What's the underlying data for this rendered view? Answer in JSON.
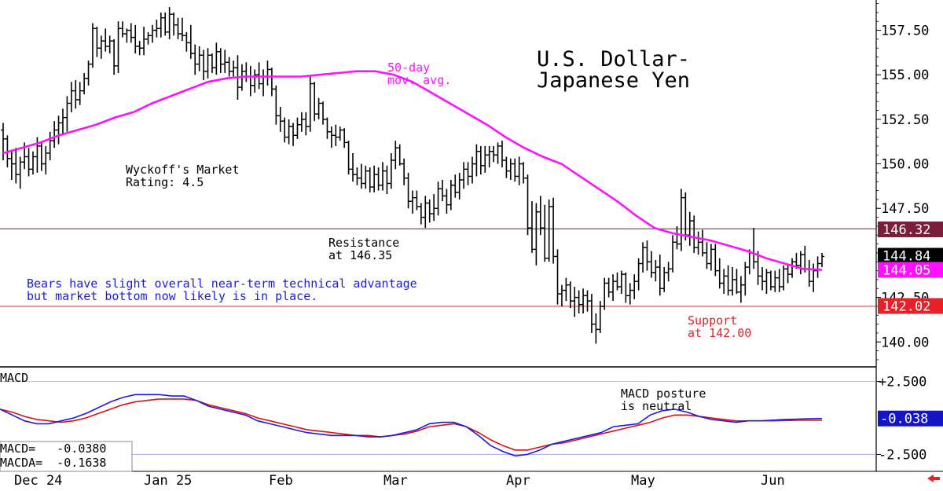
{
  "chart_data": {
    "type": "ohlc",
    "title": [
      "U.S. Dollar-",
      "Japanese Yen"
    ],
    "price_axis": {
      "ylim": [
        138.6,
        159.2
      ],
      "ticks": [
        "157.50",
        "155.00",
        "152.50",
        "150.00",
        "147.50",
        "142.50",
        "140.00"
      ],
      "tick_values": [
        157.5,
        155.0,
        152.5,
        150.0,
        147.5,
        142.5,
        140.0
      ]
    },
    "x_labels": [
      "Dec 24",
      "Jan 25",
      "Feb",
      "Mar",
      "Apr",
      "May",
      "Jun"
    ],
    "bars": [
      [
        151.9,
        152.3,
        150.2,
        151.4
      ],
      [
        151.4,
        151.6,
        149.8,
        150.3
      ],
      [
        150.3,
        150.8,
        149.1,
        150.0
      ],
      [
        150.0,
        150.9,
        148.9,
        149.4
      ],
      [
        149.4,
        150.4,
        148.6,
        150.1
      ],
      [
        150.1,
        151.2,
        149.7,
        150.4
      ],
      [
        150.4,
        150.9,
        149.3,
        149.7
      ],
      [
        149.7,
        150.7,
        149.4,
        150.4
      ],
      [
        150.4,
        151.5,
        149.5,
        151.0
      ],
      [
        151.0,
        151.2,
        149.6,
        150.0
      ],
      [
        150.0,
        151.0,
        149.4,
        150.6
      ],
      [
        150.6,
        151.8,
        150.2,
        151.3
      ],
      [
        151.3,
        152.4,
        150.9,
        151.9
      ],
      [
        151.9,
        152.7,
        151.1,
        152.3
      ],
      [
        152.3,
        153.1,
        151.6,
        152.6
      ],
      [
        152.6,
        153.8,
        151.8,
        153.4
      ],
      [
        153.4,
        154.6,
        152.9,
        154.1
      ],
      [
        154.1,
        154.7,
        153.1,
        153.6
      ],
      [
        153.6,
        154.6,
        153.3,
        154.1
      ],
      [
        154.1,
        155.1,
        153.9,
        154.8
      ],
      [
        154.8,
        155.8,
        154.4,
        155.6
      ],
      [
        155.6,
        157.9,
        155.4,
        157.6
      ],
      [
        157.6,
        157.7,
        156.0,
        156.5
      ],
      [
        156.5,
        157.2,
        155.9,
        156.9
      ],
      [
        156.9,
        157.6,
        156.3,
        156.6
      ],
      [
        156.6,
        157.2,
        156.2,
        156.9
      ],
      [
        156.9,
        157.0,
        155.0,
        155.5
      ],
      [
        155.5,
        158.0,
        155.1,
        157.6
      ],
      [
        157.6,
        158.0,
        157.1,
        157.3
      ],
      [
        157.3,
        157.6,
        156.8,
        157.5
      ],
      [
        157.5,
        157.9,
        156.8,
        157.1
      ],
      [
        157.1,
        157.8,
        156.2,
        156.6
      ],
      [
        156.6,
        156.9,
        156.1,
        156.5
      ],
      [
        156.5,
        157.7,
        156.1,
        157.0
      ],
      [
        157.0,
        157.4,
        156.7,
        157.2
      ],
      [
        157.2,
        157.8,
        156.8,
        157.5
      ],
      [
        157.5,
        158.1,
        157.1,
        157.6
      ],
      [
        157.6,
        158.5,
        157.1,
        158.2
      ],
      [
        158.2,
        158.5,
        157.2,
        157.4
      ],
      [
        157.4,
        158.8,
        157.0,
        158.4
      ],
      [
        158.4,
        158.5,
        157.2,
        157.8
      ],
      [
        157.8,
        158.2,
        157.0,
        157.3
      ],
      [
        157.3,
        158.2,
        156.9,
        157.2
      ],
      [
        157.2,
        157.4,
        156.3,
        156.8
      ],
      [
        156.8,
        157.8,
        155.9,
        156.2
      ],
      [
        156.2,
        156.7,
        155.0,
        155.6
      ],
      [
        155.6,
        156.6,
        155.2,
        156.1
      ],
      [
        156.1,
        156.4,
        154.7,
        155.2
      ],
      [
        155.2,
        156.5,
        154.8,
        156.1
      ],
      [
        156.1,
        156.2,
        155.1,
        155.4
      ],
      [
        155.4,
        156.8,
        155.0,
        156.3
      ],
      [
        156.3,
        156.5,
        155.1,
        155.6
      ],
      [
        155.6,
        156.4,
        155.1,
        155.7
      ],
      [
        155.7,
        156.0,
        154.9,
        155.2
      ],
      [
        155.2,
        155.8,
        154.9,
        155.4
      ],
      [
        155.4,
        156.1,
        153.6,
        154.3
      ],
      [
        154.3,
        155.6,
        154.1,
        155.2
      ],
      [
        155.2,
        155.7,
        154.6,
        154.9
      ],
      [
        154.9,
        155.5,
        153.8,
        154.4
      ],
      [
        154.4,
        155.3,
        154.0,
        155.0
      ],
      [
        155.0,
        155.7,
        154.2,
        154.5
      ],
      [
        154.5,
        155.3,
        153.8,
        154.9
      ],
      [
        154.9,
        155.8,
        154.4,
        155.3
      ],
      [
        155.3,
        155.4,
        153.8,
        154.2
      ],
      [
        154.2,
        154.4,
        152.2,
        152.7
      ],
      [
        152.7,
        153.2,
        151.8,
        152.4
      ],
      [
        152.4,
        152.6,
        151.2,
        151.5
      ],
      [
        151.5,
        152.5,
        151.1,
        152.1
      ],
      [
        152.1,
        152.3,
        151.0,
        151.6
      ],
      [
        151.6,
        152.6,
        151.4,
        152.2
      ],
      [
        152.2,
        152.9,
        151.8,
        152.5
      ],
      [
        152.5,
        152.9,
        151.6,
        152.1
      ],
      [
        152.1,
        154.9,
        151.8,
        154.5
      ],
      [
        154.5,
        154.6,
        152.4,
        152.8
      ],
      [
        152.8,
        153.7,
        152.5,
        153.4
      ],
      [
        153.4,
        153.5,
        152.2,
        152.5
      ],
      [
        152.5,
        152.6,
        151.4,
        151.8
      ],
      [
        151.8,
        152.1,
        150.9,
        151.6
      ],
      [
        151.6,
        152.2,
        151.0,
        151.5
      ],
      [
        151.5,
        152.1,
        151.3,
        151.9
      ],
      [
        151.9,
        152.0,
        150.9,
        151.2
      ],
      [
        151.2,
        151.3,
        149.4,
        149.7
      ],
      [
        149.7,
        150.6,
        149.0,
        149.4
      ],
      [
        149.4,
        149.8,
        148.8,
        149.2
      ],
      [
        149.2,
        150.0,
        148.6,
        148.9
      ],
      [
        148.9,
        149.9,
        148.6,
        149.6
      ],
      [
        149.6,
        149.8,
        148.4,
        148.7
      ],
      [
        148.7,
        149.9,
        148.4,
        149.4
      ],
      [
        149.4,
        149.8,
        148.5,
        148.8
      ],
      [
        148.8,
        150.1,
        148.5,
        149.6
      ],
      [
        149.6,
        149.9,
        148.3,
        148.9
      ],
      [
        148.9,
        150.6,
        148.6,
        150.2
      ],
      [
        150.2,
        151.3,
        149.7,
        150.9
      ],
      [
        150.9,
        151.1,
        149.9,
        150.0
      ],
      [
        150.0,
        150.3,
        148.8,
        149.2
      ],
      [
        149.2,
        149.5,
        147.5,
        147.9
      ],
      [
        147.9,
        148.5,
        147.2,
        148.1
      ],
      [
        148.1,
        148.5,
        147.4,
        147.6
      ],
      [
        147.6,
        147.8,
        146.6,
        147.0
      ],
      [
        147.0,
        148.2,
        146.4,
        147.8
      ],
      [
        147.8,
        148.0,
        146.7,
        147.2
      ],
      [
        147.2,
        148.3,
        146.8,
        147.5
      ],
      [
        147.5,
        149.0,
        147.1,
        148.6
      ],
      [
        148.6,
        149.1,
        147.9,
        148.2
      ],
      [
        148.2,
        148.6,
        147.2,
        147.7
      ],
      [
        147.7,
        149.1,
        147.4,
        148.8
      ],
      [
        148.8,
        149.4,
        148.1,
        148.4
      ],
      [
        148.4,
        149.5,
        148.0,
        149.1
      ],
      [
        149.1,
        150.1,
        148.6,
        149.7
      ],
      [
        149.7,
        150.1,
        148.8,
        149.3
      ],
      [
        149.3,
        150.4,
        148.9,
        150.0
      ],
      [
        150.0,
        151.1,
        149.3,
        150.7
      ],
      [
        150.7,
        151.0,
        149.4,
        149.9
      ],
      [
        149.9,
        151.0,
        149.5,
        150.5
      ],
      [
        150.5,
        151.0,
        149.8,
        150.7
      ],
      [
        150.7,
        151.0,
        150.1,
        150.5
      ],
      [
        150.5,
        151.2,
        150.0,
        151.0
      ],
      [
        151.0,
        151.3,
        149.8,
        150.2
      ],
      [
        150.2,
        150.4,
        149.2,
        149.6
      ],
      [
        149.6,
        150.3,
        149.1,
        150.0
      ],
      [
        150.0,
        150.3,
        149.0,
        149.3
      ],
      [
        149.3,
        150.4,
        148.8,
        150.0
      ],
      [
        150.0,
        150.1,
        148.9,
        149.2
      ],
      [
        149.2,
        149.4,
        146.0,
        146.4
      ],
      [
        146.4,
        147.9,
        145.0,
        145.2
      ],
      [
        145.2,
        147.8,
        144.3,
        147.3
      ],
      [
        147.3,
        148.2,
        146.0,
        146.4
      ],
      [
        146.4,
        147.7,
        144.5,
        144.7
      ],
      [
        144.7,
        148.0,
        144.5,
        147.6
      ],
      [
        147.6,
        148.1,
        144.4,
        144.8
      ],
      [
        144.8,
        145.2,
        142.1,
        142.7
      ],
      [
        142.7,
        143.2,
        142.0,
        142.9
      ],
      [
        142.9,
        143.6,
        142.3,
        143.2
      ],
      [
        143.2,
        143.4,
        141.9,
        142.3
      ],
      [
        142.3,
        143.1,
        141.4,
        142.5
      ],
      [
        142.5,
        142.9,
        141.6,
        142.1
      ],
      [
        142.1,
        143.0,
        141.6,
        142.6
      ],
      [
        142.6,
        142.9,
        141.7,
        142.3
      ],
      [
        142.3,
        142.7,
        140.5,
        141.0
      ],
      [
        141.0,
        141.6,
        139.9,
        140.7
      ],
      [
        140.7,
        142.3,
        140.5,
        142.0
      ],
      [
        142.0,
        143.6,
        141.8,
        143.3
      ],
      [
        143.3,
        143.6,
        142.5,
        142.8
      ],
      [
        142.8,
        143.8,
        142.3,
        143.4
      ],
      [
        143.4,
        143.9,
        142.9,
        143.1
      ],
      [
        143.1,
        144.0,
        142.7,
        143.8
      ],
      [
        143.8,
        143.9,
        142.2,
        142.6
      ],
      [
        142.6,
        143.3,
        142.1,
        142.9
      ],
      [
        142.9,
        143.8,
        142.4,
        143.4
      ],
      [
        143.4,
        144.7,
        142.9,
        144.4
      ],
      [
        144.4,
        145.6,
        143.9,
        145.3
      ],
      [
        145.3,
        145.7,
        144.0,
        144.5
      ],
      [
        144.5,
        145.1,
        143.6,
        143.9
      ],
      [
        143.9,
        144.6,
        143.4,
        144.2
      ],
      [
        144.2,
        144.9,
        142.6,
        143.0
      ],
      [
        143.0,
        144.2,
        142.8,
        143.9
      ],
      [
        143.9,
        144.5,
        143.4,
        144.1
      ],
      [
        144.1,
        146.0,
        143.9,
        145.6
      ],
      [
        145.6,
        146.5,
        145.2,
        145.5
      ],
      [
        145.5,
        148.6,
        145.1,
        148.1
      ],
      [
        148.1,
        148.4,
        145.7,
        146.0
      ],
      [
        146.0,
        147.3,
        145.4,
        146.8
      ],
      [
        146.8,
        147.1,
        145.0,
        145.3
      ],
      [
        145.3,
        146.2,
        144.9,
        145.6
      ],
      [
        145.6,
        146.3,
        144.8,
        145.0
      ],
      [
        145.0,
        145.6,
        144.1,
        144.4
      ],
      [
        144.4,
        145.5,
        144.0,
        145.2
      ],
      [
        145.2,
        145.5,
        143.7,
        144.0
      ],
      [
        144.0,
        144.7,
        143.0,
        143.3
      ],
      [
        143.3,
        144.1,
        142.7,
        143.7
      ],
      [
        143.7,
        144.3,
        142.6,
        142.9
      ],
      [
        142.9,
        144.2,
        142.6,
        143.5
      ],
      [
        143.5,
        144.1,
        142.7,
        142.8
      ],
      [
        142.8,
        143.7,
        142.2,
        143.2
      ],
      [
        143.2,
        144.5,
        142.6,
        144.2
      ],
      [
        144.2,
        145.2,
        143.8,
        145.0
      ],
      [
        145.0,
        146.4,
        144.1,
        144.5
      ],
      [
        144.5,
        145.1,
        143.2,
        143.7
      ],
      [
        143.7,
        144.2,
        142.9,
        143.4
      ],
      [
        143.4,
        144.1,
        142.7,
        143.9
      ],
      [
        143.9,
        144.0,
        142.9,
        143.1
      ],
      [
        143.1,
        144.0,
        142.8,
        143.6
      ],
      [
        143.6,
        144.1,
        142.8,
        143.1
      ],
      [
        143.1,
        144.3,
        142.9,
        144.1
      ],
      [
        144.1,
        144.4,
        143.3,
        143.8
      ],
      [
        143.8,
        144.7,
        143.6,
        144.5
      ],
      [
        144.5,
        145.0,
        144.1,
        144.3
      ],
      [
        144.3,
        145.1,
        143.8,
        144.9
      ],
      [
        144.9,
        145.4,
        143.9,
        144.1
      ],
      [
        144.1,
        144.6,
        143.1,
        143.4
      ],
      [
        143.4,
        144.4,
        142.8,
        144.0
      ],
      [
        144.0,
        144.8,
        143.6,
        144.4
      ],
      [
        144.4,
        145.0,
        144.2,
        144.8
      ]
    ],
    "ma50": [
      150.6,
      150.9,
      151.2,
      151.6,
      151.9,
      152.2,
      152.6,
      152.9,
      153.4,
      153.8,
      154.2,
      154.6,
      154.8,
      154.9,
      154.9,
      154.9,
      154.9,
      155.0,
      155.1,
      155.2,
      155.2,
      155.0,
      154.6,
      154.0,
      153.4,
      152.8,
      152.2,
      151.5,
      150.9,
      150.4,
      150.0,
      149.3,
      148.6,
      147.9,
      147.1,
      146.4,
      146.1,
      145.9,
      145.7,
      145.4,
      145.1,
      144.7,
      144.4,
      144.1,
      144.05
    ],
    "annotations": {
      "ma_label": [
        "50-day",
        "mov. avg."
      ],
      "rating": [
        "Wyckoff's Market",
        "Rating: 4.5"
      ],
      "resistance": [
        "Resistance",
        "at 146.35"
      ],
      "support": [
        "Support",
        "at 142.00"
      ],
      "commentary": [
        "Bears have slight overall near-term technical advantage",
        "but market bottom now likely is in place."
      ],
      "macd_note": [
        "MACD posture",
        "is neutral"
      ]
    },
    "levels": {
      "resistance": 146.35,
      "support": 142.0
    },
    "right_badges": [
      {
        "text": "146.32",
        "value": 146.32,
        "bg": "#7a1e3a",
        "fg": "#ffffff"
      },
      {
        "text": "144.84",
        "value": 144.84,
        "bg": "#000000",
        "fg": "#ffffff"
      },
      {
        "text": "144.05",
        "value": 144.05,
        "bg": "#ff11ff",
        "fg": "#ffffff"
      },
      {
        "text": "142.02",
        "value": 142.02,
        "bg": "#e8202a",
        "fg": "#ffffff"
      }
    ],
    "macd": {
      "label": "MACD",
      "ylim": [
        -3.5,
        3.5
      ],
      "ticks": [
        "+2.500",
        "-2.500"
      ],
      "tick_values": [
        2.5,
        -2.5
      ],
      "badge": {
        "text": "-0.038",
        "value": -0.038,
        "bg": "#1515c8",
        "fg": "#ffffff"
      },
      "readout": [
        "MACD=   -0.0380",
        "MACDA=  -0.1638"
      ],
      "macd_line": [
        0.6,
        0.2,
        -0.2,
        -0.4,
        -0.4,
        -0.2,
        0.0,
        0.3,
        0.7,
        1.1,
        1.4,
        1.6,
        1.6,
        1.6,
        1.5,
        1.5,
        1.2,
        0.8,
        0.6,
        0.4,
        0.2,
        -0.2,
        -0.4,
        -0.6,
        -0.8,
        -1.0,
        -1.1,
        -1.2,
        -1.2,
        -1.2,
        -1.3,
        -1.3,
        -1.2,
        -1.0,
        -0.8,
        -0.4,
        -0.3,
        -0.3,
        -0.6,
        -1.2,
        -1.9,
        -2.3,
        -2.6,
        -2.5,
        -2.2,
        -1.8,
        -1.6,
        -1.4,
        -1.2,
        -1.0,
        -0.6,
        -0.5,
        -0.4,
        0.2,
        0.5,
        0.6,
        0.4,
        0.1,
        -0.1,
        -0.2,
        -0.3,
        -0.2,
        -0.2,
        -0.15,
        -0.1,
        -0.08,
        -0.06,
        -0.04
      ],
      "signal_line": [
        0.6,
        0.4,
        0.1,
        -0.1,
        -0.2,
        -0.3,
        -0.2,
        0.0,
        0.3,
        0.6,
        0.9,
        1.1,
        1.2,
        1.3,
        1.3,
        1.3,
        1.2,
        0.9,
        0.7,
        0.5,
        0.3,
        0.0,
        -0.2,
        -0.4,
        -0.6,
        -0.8,
        -0.9,
        -1.0,
        -1.1,
        -1.2,
        -1.2,
        -1.3,
        -1.2,
        -1.1,
        -0.9,
        -0.6,
        -0.5,
        -0.4,
        -0.6,
        -1.0,
        -1.5,
        -1.9,
        -2.2,
        -2.2,
        -2.0,
        -1.8,
        -1.7,
        -1.5,
        -1.3,
        -1.1,
        -0.9,
        -0.7,
        -0.5,
        -0.3,
        0.0,
        0.2,
        0.2,
        0.1,
        0.0,
        -0.1,
        -0.2,
        -0.2,
        -0.2,
        -0.2,
        -0.18,
        -0.16,
        -0.16,
        -0.16
      ],
      "colors": {
        "macd": "#1a1ae6",
        "signal": "#e01010"
      }
    },
    "colors": {
      "ma": "#ff11ff",
      "resistance_line": "#7a1e3a",
      "support_line": "#e8202a",
      "commentary": "#1a1ae6",
      "support_text": "#e8202a",
      "ma_text": "#ff11ff"
    }
  },
  "nav": {
    "scroll_arrow": "left-arrow-icon"
  }
}
